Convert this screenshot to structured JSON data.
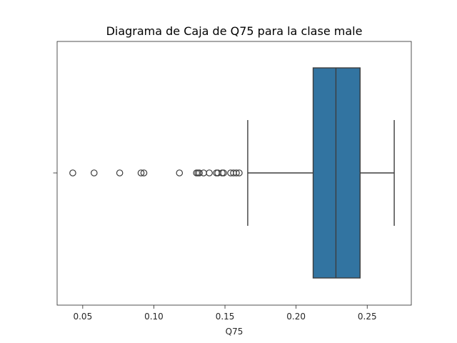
{
  "chart_data": {
    "type": "boxplot",
    "title": "Diagrama de Caja de Q75 para la clase male",
    "xlabel": "Q75",
    "ylabel": "",
    "xlim": [
      0.032,
      0.281
    ],
    "xticks": [
      0.05,
      0.1,
      0.15,
      0.2,
      0.25
    ],
    "xtick_labels": [
      "0.05",
      "0.10",
      "0.15",
      "0.20",
      "0.25"
    ],
    "grid": false,
    "orientation": "horizontal",
    "box": {
      "whisker_low": 0.166,
      "q1": 0.212,
      "median": 0.228,
      "q3": 0.245,
      "whisker_high": 0.269,
      "color": "#3274a1"
    },
    "outliers": [
      0.043,
      0.058,
      0.076,
      0.091,
      0.093,
      0.118,
      0.13,
      0.131,
      0.132,
      0.135,
      0.139,
      0.144,
      0.145,
      0.148,
      0.149,
      0.154,
      0.156,
      0.158,
      0.16
    ]
  }
}
